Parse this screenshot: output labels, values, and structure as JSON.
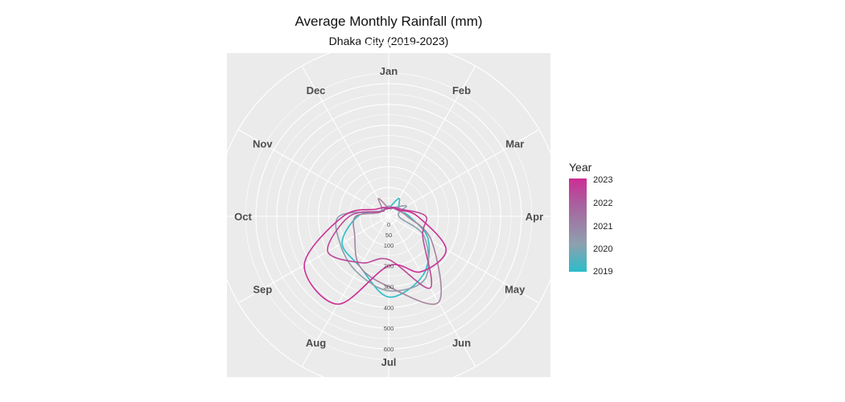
{
  "chart_data": {
    "type": "line",
    "coord": "polar",
    "title": "Average Monthly Rainfall (mm)",
    "subtitle": "Dhaka City (2019-2023)",
    "categories": [
      "Jan",
      "Feb",
      "Mar",
      "Apr",
      "May",
      "Jun",
      "Jul",
      "Aug",
      "Sep",
      "Oct",
      "Nov",
      "Dec"
    ],
    "r_ticks": [
      0,
      50,
      100,
      200,
      300,
      400,
      500,
      600
    ],
    "rlim": [
      0,
      600
    ],
    "grid": true,
    "legend": {
      "title": "Year",
      "position": "right",
      "labels": [
        "2023",
        "2022",
        "2021",
        "2020",
        "2019"
      ]
    },
    "colors": {
      "2019": "#2abdc9",
      "2020": "#8ea0ae",
      "2021": "#a7849f",
      "2022": "#bb4a98",
      "2023": "#cc2d96"
    },
    "series": [
      {
        "name": "2019",
        "values": [
          0,
          60,
          20,
          60,
          180,
          290,
          350,
          240,
          220,
          110,
          10,
          0
        ]
      },
      {
        "name": "2020",
        "values": [
          10,
          10,
          60,
          10,
          160,
          310,
          320,
          270,
          230,
          200,
          10,
          5
        ]
      },
      {
        "name": "2021",
        "values": [
          0,
          5,
          15,
          50,
          200,
          440,
          300,
          240,
          150,
          120,
          5,
          60
        ]
      },
      {
        "name": "2022",
        "values": [
          0,
          10,
          30,
          140,
          150,
          360,
          170,
          220,
          300,
          150,
          5,
          0
        ]
      },
      {
        "name": "2023",
        "values": [
          0,
          10,
          20,
          100,
          280,
          270,
          200,
          450,
          430,
          180,
          30,
          10
        ]
      }
    ]
  }
}
